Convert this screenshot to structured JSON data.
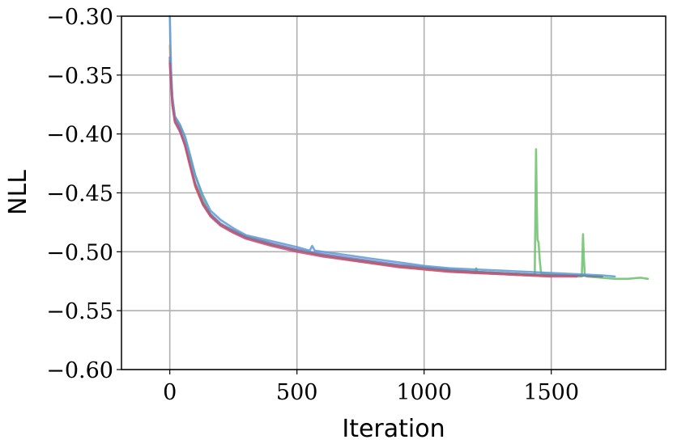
{
  "chart_data": {
    "type": "line",
    "title": "",
    "xlabel": "Iteration",
    "ylabel": "NLL",
    "xlim": [
      -190,
      1950
    ],
    "ylim": [
      -0.6,
      -0.3
    ],
    "x_ticks": [
      0,
      500,
      1000,
      1500
    ],
    "x_tick_labels": [
      "0",
      "500",
      "1000",
      "1500"
    ],
    "y_ticks": [
      -0.3,
      -0.35,
      -0.4,
      -0.45,
      -0.5,
      -0.55,
      -0.6
    ],
    "y_tick_labels": [
      "−0.30",
      "−0.35",
      "−0.40",
      "−0.45",
      "−0.50",
      "−0.55",
      "−0.60"
    ],
    "grid": true,
    "legend": "none",
    "series": [
      {
        "color": "#6bbf6b",
        "x": [
          0,
          10,
          20,
          40,
          60,
          80,
          100,
          130,
          160,
          200,
          250,
          300,
          400,
          500,
          600,
          700,
          800,
          900,
          1000,
          1100,
          1200,
          1205,
          1210,
          1300,
          1400,
          1435,
          1440,
          1443,
          1446,
          1450,
          1455,
          1460,
          1500,
          1550,
          1600,
          1620,
          1625,
          1628,
          1632,
          1636,
          1640,
          1700,
          1750,
          1800,
          1850,
          1880
        ],
        "y": [
          -0.335,
          -0.368,
          -0.385,
          -0.393,
          -0.405,
          -0.42,
          -0.435,
          -0.455,
          -0.468,
          -0.477,
          -0.483,
          -0.488,
          -0.494,
          -0.499,
          -0.503,
          -0.506,
          -0.509,
          -0.512,
          -0.514,
          -0.516,
          -0.518,
          -0.514,
          -0.518,
          -0.519,
          -0.52,
          -0.52,
          -0.413,
          -0.46,
          -0.49,
          -0.492,
          -0.508,
          -0.518,
          -0.519,
          -0.52,
          -0.521,
          -0.521,
          -0.485,
          -0.505,
          -0.52,
          -0.52,
          -0.521,
          -0.522,
          -0.523,
          -0.523,
          -0.522,
          -0.523
        ]
      },
      {
        "color": "#f0a04a",
        "x": [
          0,
          10,
          20,
          40,
          60,
          80,
          100,
          130,
          160,
          200,
          250,
          300,
          400,
          500,
          600,
          700,
          800,
          900,
          1000,
          1100,
          1200,
          1300,
          1400,
          1500
        ],
        "y": [
          -0.325,
          -0.37,
          -0.385,
          -0.395,
          -0.41,
          -0.428,
          -0.445,
          -0.46,
          -0.47,
          -0.477,
          -0.482,
          -0.487,
          -0.493,
          -0.499,
          -0.503,
          -0.507,
          -0.51,
          -0.513,
          -0.515,
          -0.517,
          -0.518,
          -0.519,
          -0.52,
          -0.521
        ]
      },
      {
        "color": "#8a70c8",
        "x": [
          0,
          10,
          20,
          40,
          60,
          80,
          100,
          130,
          160,
          200,
          250,
          300,
          400,
          500,
          600,
          700,
          800,
          900,
          1000,
          1100,
          1200,
          1300,
          1400,
          1500,
          1600,
          1700
        ],
        "y": [
          -0.335,
          -0.372,
          -0.387,
          -0.396,
          -0.409,
          -0.426,
          -0.442,
          -0.458,
          -0.468,
          -0.476,
          -0.482,
          -0.487,
          -0.493,
          -0.498,
          -0.502,
          -0.505,
          -0.508,
          -0.511,
          -0.513,
          -0.515,
          -0.517,
          -0.518,
          -0.519,
          -0.52,
          -0.52,
          -0.521
        ]
      },
      {
        "color": "#7a7a7a",
        "x": [
          0,
          10,
          20,
          40,
          60,
          80,
          100,
          130,
          160,
          200,
          250,
          300,
          400,
          500,
          600,
          700,
          800,
          900,
          1000,
          1100,
          1200,
          1300,
          1400,
          1500,
          1600,
          1700
        ],
        "y": [
          -0.338,
          -0.375,
          -0.389,
          -0.397,
          -0.41,
          -0.427,
          -0.443,
          -0.459,
          -0.469,
          -0.477,
          -0.483,
          -0.488,
          -0.494,
          -0.499,
          -0.503,
          -0.506,
          -0.509,
          -0.512,
          -0.514,
          -0.516,
          -0.517,
          -0.518,
          -0.519,
          -0.52,
          -0.52,
          -0.521
        ]
      },
      {
        "color": "#5b9bd8",
        "x": [
          0,
          5,
          10,
          20,
          40,
          60,
          80,
          100,
          130,
          160,
          200,
          250,
          300,
          400,
          500,
          550,
          560,
          570,
          600,
          700,
          800,
          900,
          1000,
          1100,
          1200,
          1300,
          1400,
          1500,
          1600,
          1700,
          1750
        ],
        "y": [
          -0.3,
          -0.345,
          -0.37,
          -0.385,
          -0.392,
          -0.402,
          -0.418,
          -0.435,
          -0.452,
          -0.465,
          -0.473,
          -0.48,
          -0.486,
          -0.491,
          -0.496,
          -0.499,
          -0.495,
          -0.499,
          -0.5,
          -0.503,
          -0.506,
          -0.509,
          -0.512,
          -0.514,
          -0.515,
          -0.516,
          -0.517,
          -0.518,
          -0.519,
          -0.52,
          -0.521
        ]
      },
      {
        "color": "#c94f7c",
        "x": [
          0,
          10,
          20,
          40,
          60,
          80,
          100,
          130,
          160,
          200,
          250,
          300,
          400,
          500,
          600,
          700,
          800,
          900,
          1000,
          1100,
          1200,
          1300,
          1400,
          1500,
          1600
        ],
        "y": [
          -0.34,
          -0.375,
          -0.39,
          -0.398,
          -0.41,
          -0.427,
          -0.444,
          -0.46,
          -0.47,
          -0.478,
          -0.484,
          -0.489,
          -0.495,
          -0.5,
          -0.504,
          -0.507,
          -0.51,
          -0.513,
          -0.515,
          -0.517,
          -0.518,
          -0.519,
          -0.52,
          -0.521,
          -0.521
        ]
      }
    ]
  }
}
